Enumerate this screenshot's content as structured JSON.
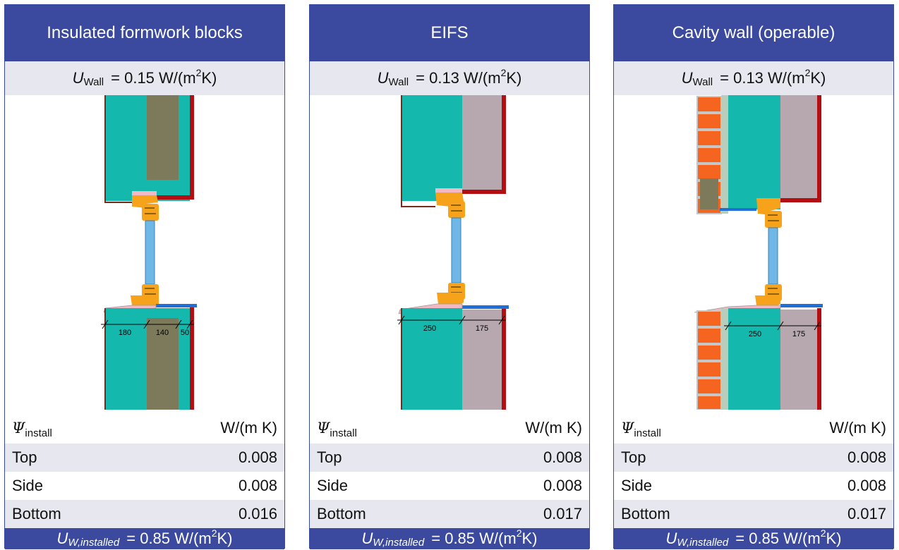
{
  "panels": [
    {
      "title": "Insulated formwork blocks",
      "u_wall": {
        "symbol": "U",
        "subscript": "Wall",
        "equals": "=",
        "value": "0.15",
        "unit_prefix": "W/(m",
        "unit_exp": "2",
        "unit_suffix": " K)"
      },
      "dimensions": [
        "180",
        "140",
        "50"
      ],
      "psi": {
        "symbol": "Ψ",
        "subscript": "install",
        "unit": "W/(m K)"
      },
      "rows": [
        {
          "label": "Top",
          "value": "0.008"
        },
        {
          "label": "Side",
          "value": "0.008"
        },
        {
          "label": "Bottom",
          "value": "0.016"
        }
      ],
      "u_w": {
        "symbol": "U",
        "subscript": "W,installed",
        "equals": "=",
        "value": "0.85",
        "unit_prefix": "W/(m",
        "unit_exp": "2",
        "unit_suffix": " K)"
      }
    },
    {
      "title": "EIFS",
      "u_wall": {
        "symbol": "U",
        "subscript": "Wall",
        "equals": "=",
        "value": "0.13",
        "unit_prefix": "W/(m",
        "unit_exp": "2",
        "unit_suffix": " K)"
      },
      "dimensions": [
        "250",
        "175"
      ],
      "psi": {
        "symbol": "Ψ",
        "subscript": "install",
        "unit": "W/(m K)"
      },
      "rows": [
        {
          "label": "Top",
          "value": "0.008"
        },
        {
          "label": "Side",
          "value": "0.008"
        },
        {
          "label": "Bottom",
          "value": "0.017"
        }
      ],
      "u_w": {
        "symbol": "U",
        "subscript": "W,installed",
        "equals": "=",
        "value": "0.85",
        "unit_prefix": "W/(m",
        "unit_exp": "2",
        "unit_suffix": " K)"
      }
    },
    {
      "title": "Cavity wall (operable)",
      "u_wall": {
        "symbol": "U",
        "subscript": "Wall",
        "equals": "=",
        "value": "0.13",
        "unit_prefix": "W/(m",
        "unit_exp": "2",
        "unit_suffix": " K)"
      },
      "dimensions": [
        "250",
        "175"
      ],
      "psi": {
        "symbol": "Ψ",
        "subscript": "install",
        "unit": "W/(m K)"
      },
      "rows": [
        {
          "label": "Top",
          "value": "0.008"
        },
        {
          "label": "Side",
          "value": "0.008"
        },
        {
          "label": "Bottom",
          "value": "0.017"
        }
      ],
      "u_w": {
        "symbol": "U",
        "subscript": "W,installed",
        "equals": "=",
        "value": "0.85",
        "unit_prefix": "W/(m",
        "unit_exp": "2",
        "unit_suffix": " K)"
      }
    }
  ],
  "colors": {
    "header": "#3b4a9e",
    "shade": "#e6e7ef",
    "structure": "#14b8ad",
    "core": "#7d7a5c",
    "insulation": "#b7a7ae",
    "frame": "#f7a21b",
    "glass": "#6fb7e6",
    "render": "#b30f12",
    "sill": "#1f6fd6",
    "brick": "#f5651f",
    "cavity": "#b9cdbd"
  }
}
